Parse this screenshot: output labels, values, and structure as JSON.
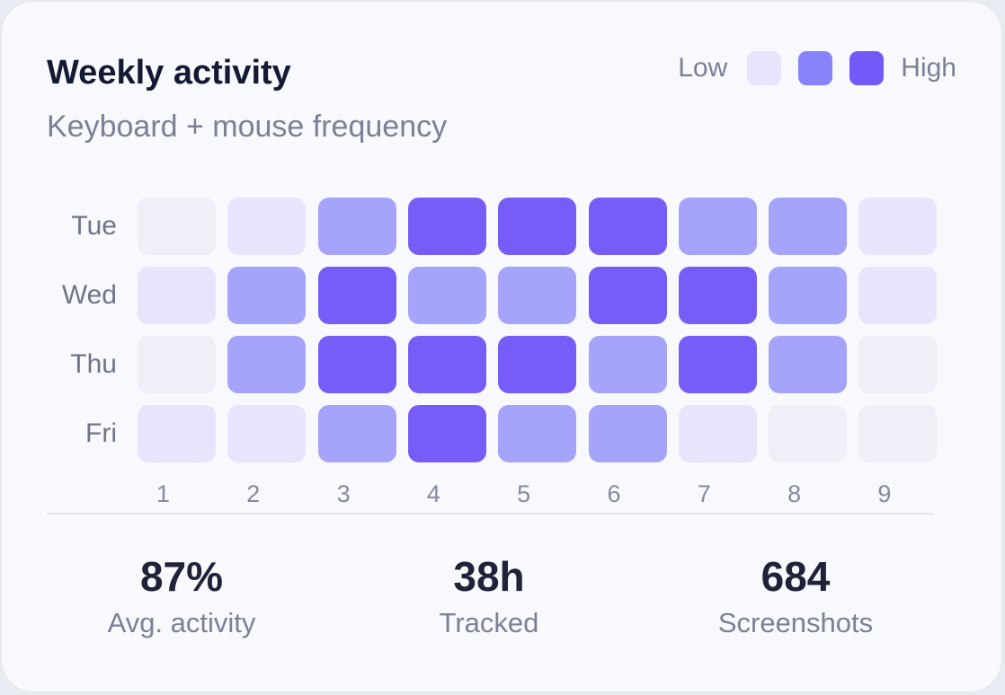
{
  "header": {
    "title": "Weekly activity",
    "subtitle": "Keyboard + mouse frequency"
  },
  "legend": {
    "low_label": "Low",
    "high_label": "High",
    "swatches": [
      "#e6e5fb",
      "#8683fb",
      "#7359f7"
    ]
  },
  "level_colors": [
    "#eeeff7",
    "#e6e5fb",
    "#a6a3fb",
    "#775cf8"
  ],
  "chart_data": {
    "type": "heatmap",
    "x": [
      "1",
      "2",
      "3",
      "4",
      "5",
      "6",
      "7",
      "8",
      "9"
    ],
    "y": [
      "Tue",
      "Wed",
      "Thu",
      "Fri"
    ],
    "values": [
      [
        0,
        1,
        2,
        3,
        3,
        3,
        2,
        2,
        1
      ],
      [
        1,
        2,
        3,
        2,
        2,
        3,
        3,
        2,
        1
      ],
      [
        0,
        2,
        3,
        3,
        3,
        2,
        3,
        2,
        0
      ],
      [
        1,
        1,
        2,
        3,
        2,
        2,
        1,
        0,
        0
      ]
    ],
    "scale": "Low → High"
  },
  "stats": [
    {
      "value": "87%",
      "label": "Avg. activity"
    },
    {
      "value": "38h",
      "label": "Tracked"
    },
    {
      "value": "684",
      "label": "Screenshots"
    }
  ]
}
